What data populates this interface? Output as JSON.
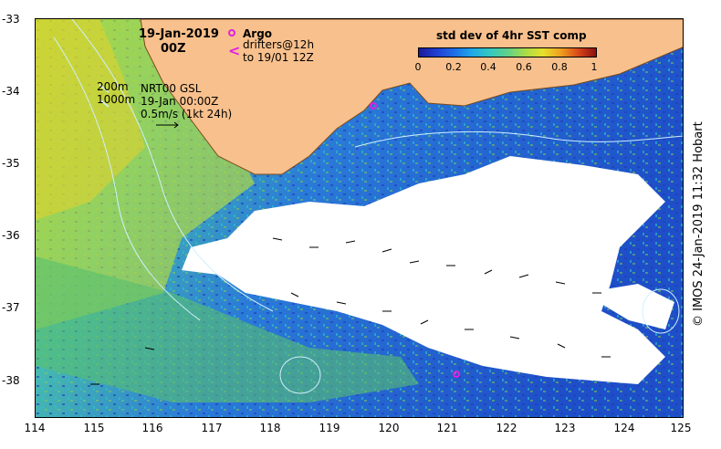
{
  "map": {
    "date_line1": "19-Jan-2019",
    "date_line2": "00Z",
    "legend_argo": "Argo",
    "legend_drifters_1": "drifters@12h",
    "legend_drifters_2": "to 19/01 12Z",
    "isobath_200": "200m",
    "isobath_1000": "1000m",
    "product": "NRT00 GSL",
    "product_time": "19-Jan 00:00Z",
    "vector_scale": "0.5m/s (1kt 24h)",
    "credit": "© IMOS 24-Jan-2019 11:32 Hobart",
    "colorbar": {
      "title": "std dev of 4hr SST comp",
      "ticks": [
        "0",
        "0.2",
        "0.4",
        "0.6",
        "0.8",
        "1"
      ]
    },
    "y_axis_labels": [
      "-33",
      "-34",
      "-35",
      "-36",
      "-37",
      "-38"
    ],
    "x_axis_labels": [
      "114",
      "115",
      "116",
      "117",
      "118",
      "119",
      "120",
      "121",
      "122",
      "123",
      "124",
      "125"
    ],
    "colors": {
      "land": "#f8c08c",
      "no_data": "#ffffff",
      "argo": "#e020e0"
    }
  }
}
